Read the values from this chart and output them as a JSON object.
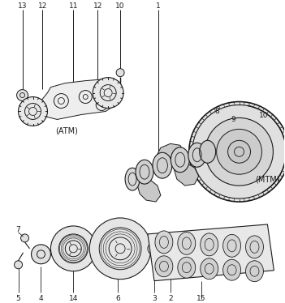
{
  "bg_color": "#ffffff",
  "line_color": "#1a1a1a",
  "atm_label": "(ATM)",
  "mtm_label": "(MTM)",
  "figsize": [
    3.51,
    3.74
  ],
  "dpi": 100
}
